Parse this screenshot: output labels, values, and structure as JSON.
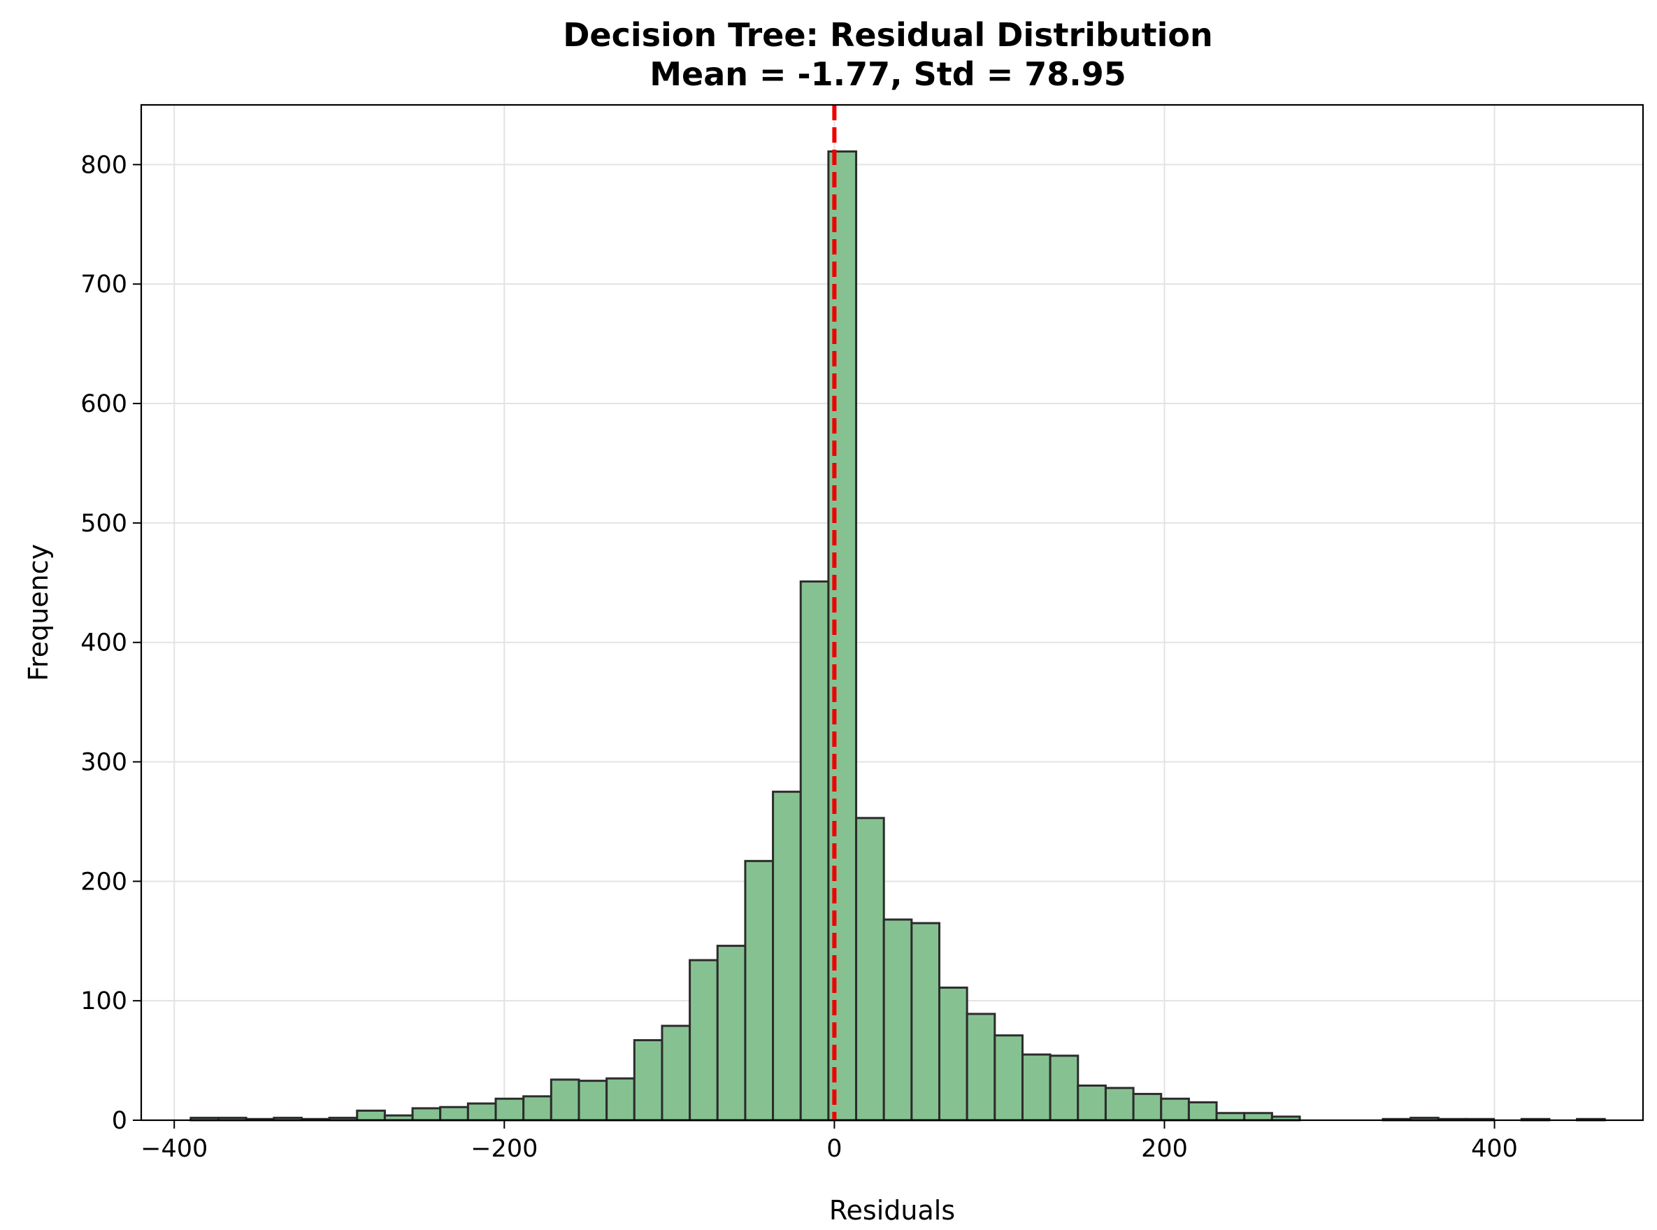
{
  "chart_data": {
    "type": "bar",
    "title": "Decision Tree: Residual Distribution",
    "subtitle": "Mean = -1.77, Std = 78.95",
    "xlabel": "Residuals",
    "ylabel": "Frequency",
    "xlim": [
      -420,
      490
    ],
    "ylim": [
      0,
      850
    ],
    "xticks": [
      {
        "value": -400,
        "label": "−400"
      },
      {
        "value": -200,
        "label": "−200"
      },
      {
        "value": 0,
        "label": "0"
      },
      {
        "value": 200,
        "label": "200"
      },
      {
        "value": 400,
        "label": "400"
      }
    ],
    "yticks": [
      {
        "value": 0,
        "label": "0"
      },
      {
        "value": 100,
        "label": "100"
      },
      {
        "value": 200,
        "label": "200"
      },
      {
        "value": 300,
        "label": "300"
      },
      {
        "value": 400,
        "label": "400"
      },
      {
        "value": 500,
        "label": "500"
      },
      {
        "value": 600,
        "label": "600"
      },
      {
        "value": 700,
        "label": "700"
      },
      {
        "value": 800,
        "label": "800"
      }
    ],
    "grid": true,
    "bin_start": -390,
    "bin_width": 16.8,
    "values": [
      2,
      2,
      1,
      2,
      1,
      2,
      8,
      4,
      10,
      11,
      14,
      18,
      20,
      34,
      33,
      35,
      67,
      79,
      134,
      146,
      217,
      275,
      451,
      811,
      253,
      168,
      165,
      111,
      89,
      71,
      55,
      54,
      29,
      27,
      22,
      18,
      15,
      6,
      6,
      3,
      0,
      0,
      0,
      1,
      2,
      1,
      1,
      0,
      1,
      0,
      1
    ],
    "mean_line": {
      "x": 0,
      "color": "#ee0000",
      "style": "dashed"
    },
    "bar_color": "#86c291",
    "bar_edge_color": "#2c2c2c"
  }
}
